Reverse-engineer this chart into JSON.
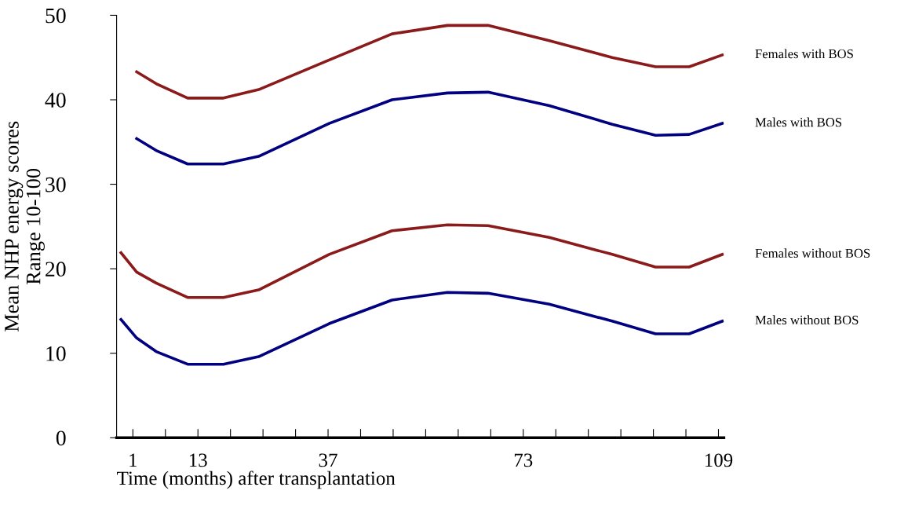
{
  "chart_data": {
    "type": "line",
    "xlabel": "Time (months) after transplantation",
    "ylabel": "Mean NHP energy scores\nRange 10-100",
    "xlim": [
      -2,
      110
    ],
    "ylim": [
      0,
      50
    ],
    "yticks": [
      0,
      10,
      20,
      30,
      40,
      50
    ],
    "xticks": [
      1,
      {
        "value": 7,
        "label": null
      },
      13,
      {
        "value": 19,
        "label": null
      },
      {
        "value": 25,
        "label": null
      },
      {
        "value": 31,
        "label": null
      },
      37,
      {
        "value": 43,
        "label": null
      },
      {
        "value": 49,
        "label": null
      },
      {
        "value": 55,
        "label": null
      },
      {
        "value": 61,
        "label": null
      },
      {
        "value": 67,
        "label": null
      },
      73,
      {
        "value": 79,
        "label": null
      },
      {
        "value": 85,
        "label": null
      },
      {
        "value": 91,
        "label": null
      },
      {
        "value": 97,
        "label": null
      },
      {
        "value": 103,
        "label": null
      },
      109
    ],
    "grid": false,
    "legend": false,
    "marker": "none",
    "line_style": "solid",
    "series": [
      {
        "name": "Females with BOS",
        "color": "#8b1a1a",
        "x": [
          1.7,
          5.3,
          11.1,
          17.7,
          24.2,
          37.2,
          48.8,
          59,
          66.5,
          77.8,
          89.4,
          97.4,
          103.6,
          109.7
        ],
        "values": [
          43.3,
          41.9,
          40.2,
          40.2,
          41.2,
          44.7,
          47.8,
          48.8,
          48.8,
          47.0,
          45.0,
          43.9,
          43.9,
          45.3
        ]
      },
      {
        "name": "Males with BOS",
        "color": "#000080",
        "x": [
          1.7,
          5.3,
          11.1,
          17.7,
          24.2,
          37.2,
          48.8,
          59,
          66.5,
          77.8,
          89.4,
          97.4,
          103.6,
          109.7
        ],
        "values": [
          35.4,
          34.0,
          32.4,
          32.4,
          33.3,
          37.2,
          40.0,
          40.8,
          40.9,
          39.3,
          37.1,
          35.8,
          35.9,
          37.2
        ]
      },
      {
        "name": "Females without BOS",
        "color": "#8b1a1a",
        "x": [
          -1.2,
          1.7,
          5.3,
          11.1,
          17.7,
          24.2,
          37.2,
          48.8,
          59,
          66.5,
          77.8,
          89.4,
          97.4,
          103.6,
          109.7
        ],
        "values": [
          21.9,
          19.6,
          18.3,
          16.6,
          16.6,
          17.5,
          21.7,
          24.5,
          25.2,
          25.1,
          23.7,
          21.7,
          20.2,
          20.2,
          21.7
        ]
      },
      {
        "name": "Males without BOS",
        "color": "#000080",
        "x": [
          -1.2,
          1.7,
          5.3,
          11.1,
          17.7,
          24.2,
          37.2,
          48.8,
          59,
          66.5,
          77.8,
          89.4,
          97.4,
          103.6,
          109.7
        ],
        "values": [
          14.0,
          11.8,
          10.2,
          8.7,
          8.7,
          9.6,
          13.5,
          16.3,
          17.2,
          17.1,
          15.8,
          13.8,
          12.3,
          12.3,
          13.8
        ]
      }
    ]
  }
}
